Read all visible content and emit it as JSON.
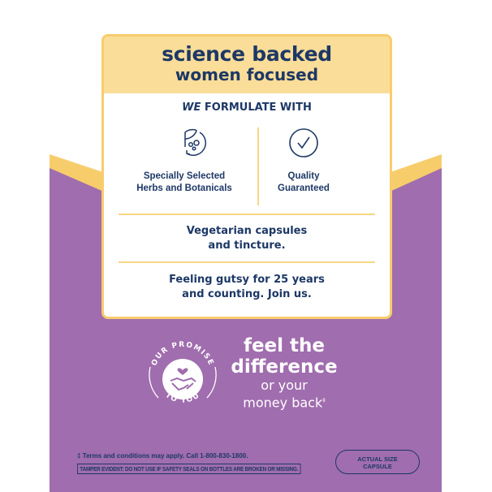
{
  "colors": {
    "purple": "#a06dae",
    "yellow": "#f7cd6c",
    "yellow_light": "#fadd98",
    "navy": "#1d3866"
  },
  "card": {
    "title_line1": "science backed",
    "title_line2": "women focused",
    "formulate_em": "WE",
    "formulate_rest": " FORMULATE WITH",
    "features": [
      {
        "icon": "leaf-cycle-icon",
        "line1": "Specially Selected",
        "line2": "Herbs and Botanicals"
      },
      {
        "icon": "check-circle-icon",
        "line1": "Quality",
        "line2": "Guaranteed"
      }
    ],
    "vegetarian_line1": "Vegetarian capsules",
    "vegetarian_line2": "and tincture.",
    "gutsy_line1": "Feeling gutsy for 25 years",
    "gutsy_line2": "and counting. Join us."
  },
  "promise": {
    "badge_top": "OUR PROMISE",
    "badge_bottom": "TO YOU",
    "icon": "handshake-heart-icon",
    "line1": "feel the",
    "line2": "difference",
    "line3": "or your",
    "line4": "money back",
    "mark": "‡"
  },
  "footer": {
    "terms": "‡ Terms and conditions may apply. Call 1-800-830-1800.",
    "tamper": "TAMPER EVIDENT: DO NOT USE IF SAFETY SEALS ON BOTTLES ARE BROKEN OR MISSING.",
    "capsule_line1": "ACTUAL SIZE",
    "capsule_line2": "CAPSULE"
  }
}
